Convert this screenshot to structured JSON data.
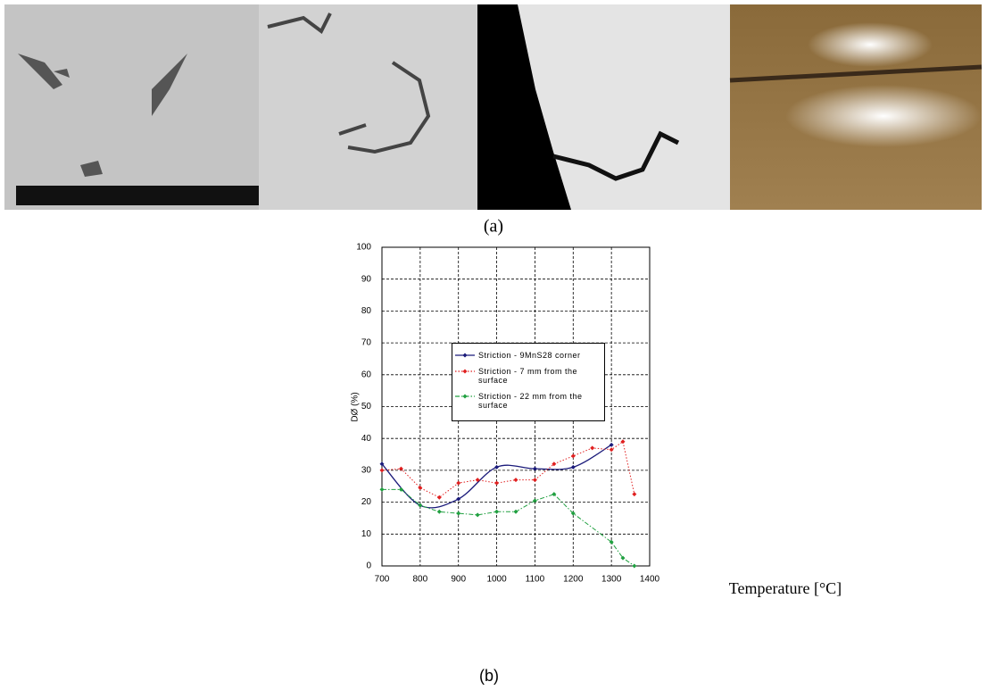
{
  "panel_labels": {
    "a": "(a)",
    "b": "(b)"
  },
  "chart_data": {
    "type": "line",
    "y_label": "DØ (%)",
    "x_label": "Temperature [°C]",
    "xlim": [
      700,
      1400
    ],
    "xticks": [
      700,
      800,
      900,
      1000,
      1100,
      1200,
      1300,
      1400
    ],
    "ylim": [
      0,
      100
    ],
    "yticks": [
      0,
      10,
      20,
      30,
      40,
      50,
      60,
      70,
      80,
      90,
      100
    ],
    "grid": true,
    "series": [
      {
        "name": "Striction - 9MnS28 corner",
        "color": "#1a1a7a",
        "line_style": "solid",
        "smooth": true,
        "x": [
          700,
          800,
          900,
          1000,
          1100,
          1200,
          1300
        ],
        "values": [
          32,
          19,
          21,
          31,
          30.5,
          31,
          38
        ]
      },
      {
        "name": "Striction - 7 mm from the surface",
        "color": "#e02020",
        "line_style": "dotted",
        "smooth": false,
        "x": [
          700,
          750,
          800,
          850,
          900,
          950,
          1000,
          1050,
          1100,
          1150,
          1200,
          1250,
          1300,
          1330,
          1360
        ],
        "values": [
          30,
          30.5,
          24.5,
          21.5,
          26,
          27,
          26,
          27,
          27,
          32,
          34.5,
          37,
          36.5,
          39,
          22.5
        ]
      },
      {
        "name": "Striction - 22 mm from the surface",
        "color": "#20a040",
        "line_style": "dashdot",
        "smooth": false,
        "x": [
          700,
          750,
          800,
          850,
          900,
          950,
          1000,
          1050,
          1100,
          1150,
          1200,
          1300,
          1330,
          1360
        ],
        "values": [
          24,
          24,
          19,
          17,
          16.5,
          16,
          17,
          17,
          20.5,
          22.5,
          16.5,
          7.5,
          2.5,
          0
        ]
      }
    ]
  }
}
